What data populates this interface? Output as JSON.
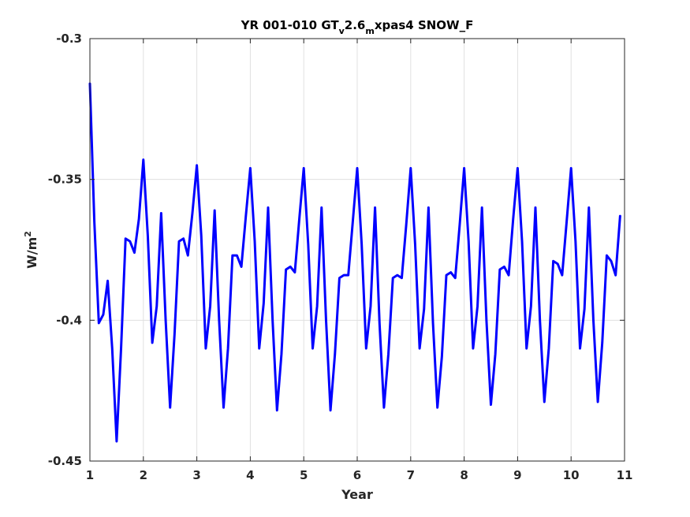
{
  "chart_data": {
    "type": "line",
    "title_parts": {
      "a": "YR 001-010 GT",
      "sub1": "v",
      "b": "2.6",
      "sub2": "m",
      "c": "xpas4 SNOW_F"
    },
    "xlabel": "Year",
    "ylabel_parts": {
      "base": "W/m",
      "sup": "2"
    },
    "xlim": [
      1,
      11
    ],
    "ylim": [
      -0.45,
      -0.3
    ],
    "xticks": [
      1,
      2,
      3,
      4,
      5,
      6,
      7,
      8,
      9,
      10,
      11
    ],
    "xtick_labels": [
      "1",
      "2",
      "3",
      "4",
      "5",
      "6",
      "7",
      "8",
      "9",
      "10",
      "11"
    ],
    "yticks": [
      -0.45,
      -0.4,
      -0.35,
      -0.3
    ],
    "ytick_labels": [
      "-0.45",
      "-0.4",
      "-0.35",
      "-0.3"
    ],
    "grid": true,
    "line_color": "#0000ff",
    "series": [
      {
        "x": [
          1.0,
          1.083,
          1.167,
          1.25,
          1.333,
          1.417,
          1.5,
          1.583,
          1.667,
          1.75,
          1.833,
          1.917,
          2.0,
          2.083,
          2.167,
          2.25,
          2.333,
          2.417,
          2.5,
          2.583,
          2.667,
          2.75,
          2.833,
          2.917,
          3.0,
          3.083,
          3.167,
          3.25,
          3.333,
          3.417,
          3.5,
          3.583,
          3.667,
          3.75,
          3.833,
          3.917,
          4.0,
          4.083,
          4.167,
          4.25,
          4.333,
          4.417,
          4.5,
          4.583,
          4.667,
          4.75,
          4.833,
          4.917,
          5.0,
          5.083,
          5.167,
          5.25,
          5.333,
          5.417,
          5.5,
          5.583,
          5.667,
          5.75,
          5.833,
          5.917,
          6.0,
          6.083,
          6.167,
          6.25,
          6.333,
          6.417,
          6.5,
          6.583,
          6.667,
          6.75,
          6.833,
          6.917,
          7.0,
          7.083,
          7.167,
          7.25,
          7.333,
          7.417,
          7.5,
          7.583,
          7.667,
          7.75,
          7.833,
          7.917,
          8.0,
          8.083,
          8.167,
          8.25,
          8.333,
          8.417,
          8.5,
          8.583,
          8.667,
          8.75,
          8.833,
          8.917,
          9.0,
          9.083,
          9.167,
          9.25,
          9.333,
          9.417,
          9.5,
          9.583,
          9.667,
          9.75,
          9.833,
          9.917,
          10.0,
          10.083,
          10.167,
          10.25,
          10.333,
          10.417,
          10.5,
          10.583,
          10.667,
          10.75,
          10.833,
          10.917
        ],
        "y": [
          -0.316,
          -0.365,
          -0.401,
          -0.398,
          -0.386,
          -0.41,
          -0.443,
          -0.41,
          -0.371,
          -0.372,
          -0.376,
          -0.364,
          -0.343,
          -0.37,
          -0.408,
          -0.395,
          -0.362,
          -0.4,
          -0.431,
          -0.405,
          -0.372,
          -0.371,
          -0.377,
          -0.362,
          -0.345,
          -0.37,
          -0.41,
          -0.395,
          -0.361,
          -0.4,
          -0.431,
          -0.41,
          -0.377,
          -0.377,
          -0.381,
          -0.363,
          -0.346,
          -0.372,
          -0.41,
          -0.394,
          -0.36,
          -0.4,
          -0.432,
          -0.412,
          -0.382,
          -0.381,
          -0.383,
          -0.364,
          -0.346,
          -0.373,
          -0.41,
          -0.395,
          -0.36,
          -0.4,
          -0.432,
          -0.412,
          -0.385,
          -0.384,
          -0.384,
          -0.365,
          -0.346,
          -0.373,
          -0.41,
          -0.395,
          -0.36,
          -0.401,
          -0.431,
          -0.412,
          -0.385,
          -0.384,
          -0.385,
          -0.366,
          -0.346,
          -0.373,
          -0.41,
          -0.396,
          -0.36,
          -0.401,
          -0.431,
          -0.413,
          -0.384,
          -0.383,
          -0.385,
          -0.366,
          -0.346,
          -0.372,
          -0.41,
          -0.395,
          -0.36,
          -0.4,
          -0.43,
          -0.412,
          -0.382,
          -0.381,
          -0.384,
          -0.364,
          -0.346,
          -0.372,
          -0.41,
          -0.395,
          -0.36,
          -0.4,
          -0.429,
          -0.41,
          -0.379,
          -0.38,
          -0.384,
          -0.365,
          -0.346,
          -0.372,
          -0.41,
          -0.396,
          -0.36,
          -0.4,
          -0.429,
          -0.408,
          -0.377,
          -0.379,
          -0.384,
          -0.363
        ]
      }
    ]
  }
}
